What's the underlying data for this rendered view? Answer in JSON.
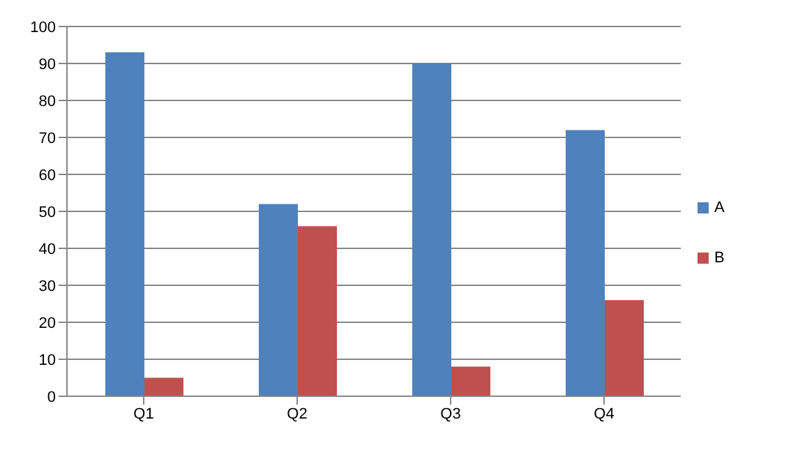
{
  "chart_data": {
    "type": "bar",
    "categories": [
      "Q1",
      "Q2",
      "Q3",
      "Q4"
    ],
    "series": [
      {
        "name": "A",
        "color": "#4f81bd",
        "values": [
          93,
          52,
          90,
          72
        ]
      },
      {
        "name": "B",
        "color": "#c0504d",
        "values": [
          5,
          46,
          8,
          26
        ]
      }
    ],
    "ylim": [
      0,
      100
    ],
    "yticks": [
      0,
      10,
      20,
      30,
      40,
      50,
      60,
      70,
      80,
      90,
      100
    ],
    "grid": "y",
    "legend": "right"
  }
}
